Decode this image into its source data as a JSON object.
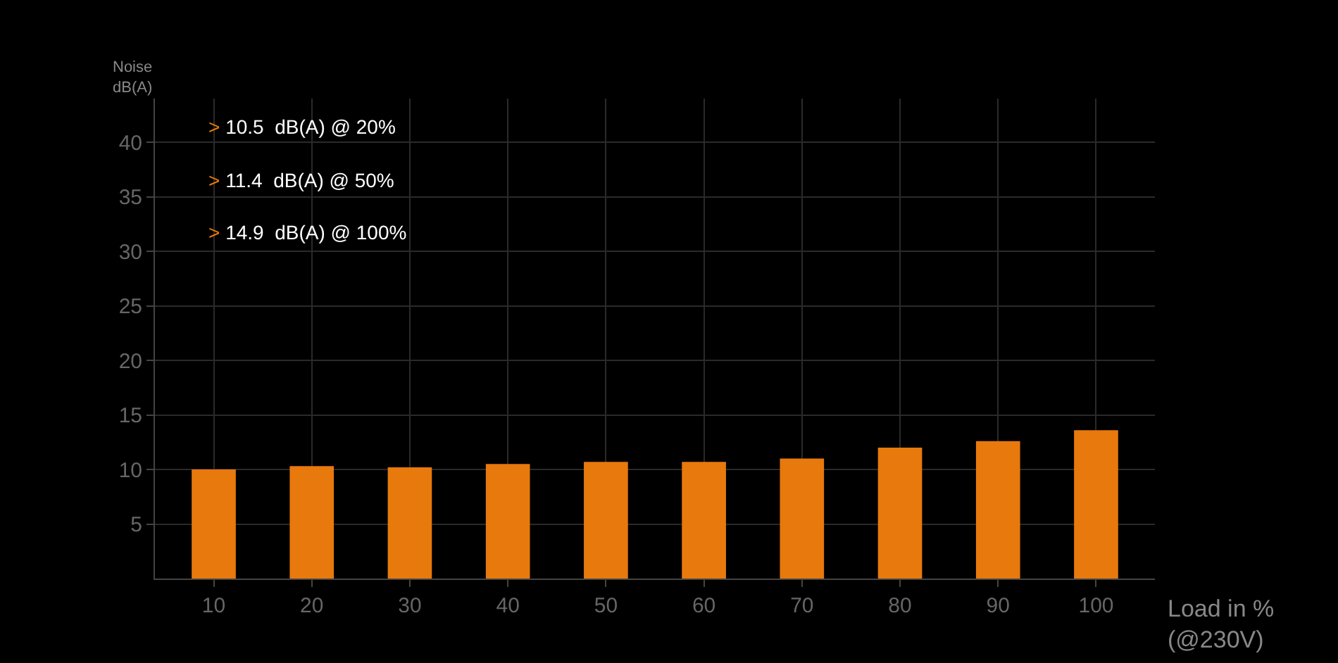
{
  "chart_data": {
    "type": "bar",
    "categories": [
      "10",
      "20",
      "30",
      "40",
      "50",
      "60",
      "70",
      "80",
      "90",
      "100"
    ],
    "values": [
      10.0,
      10.3,
      10.2,
      10.5,
      10.7,
      10.7,
      11.0,
      12.0,
      12.6,
      13.6
    ],
    "color": "#e8790c",
    "ylabel": "Noise\ndB(A)",
    "xlabel": "Load in %\n(@230V)",
    "ylim": [
      0,
      44
    ],
    "yticks": [
      5,
      10,
      15,
      20,
      25,
      30,
      35,
      40
    ],
    "grid": true,
    "annotations": [
      "> 10.5  dB(A) @ 20%",
      "> 11.4  dB(A) @ 50%",
      "> 14.9  dB(A) @ 100%"
    ]
  }
}
